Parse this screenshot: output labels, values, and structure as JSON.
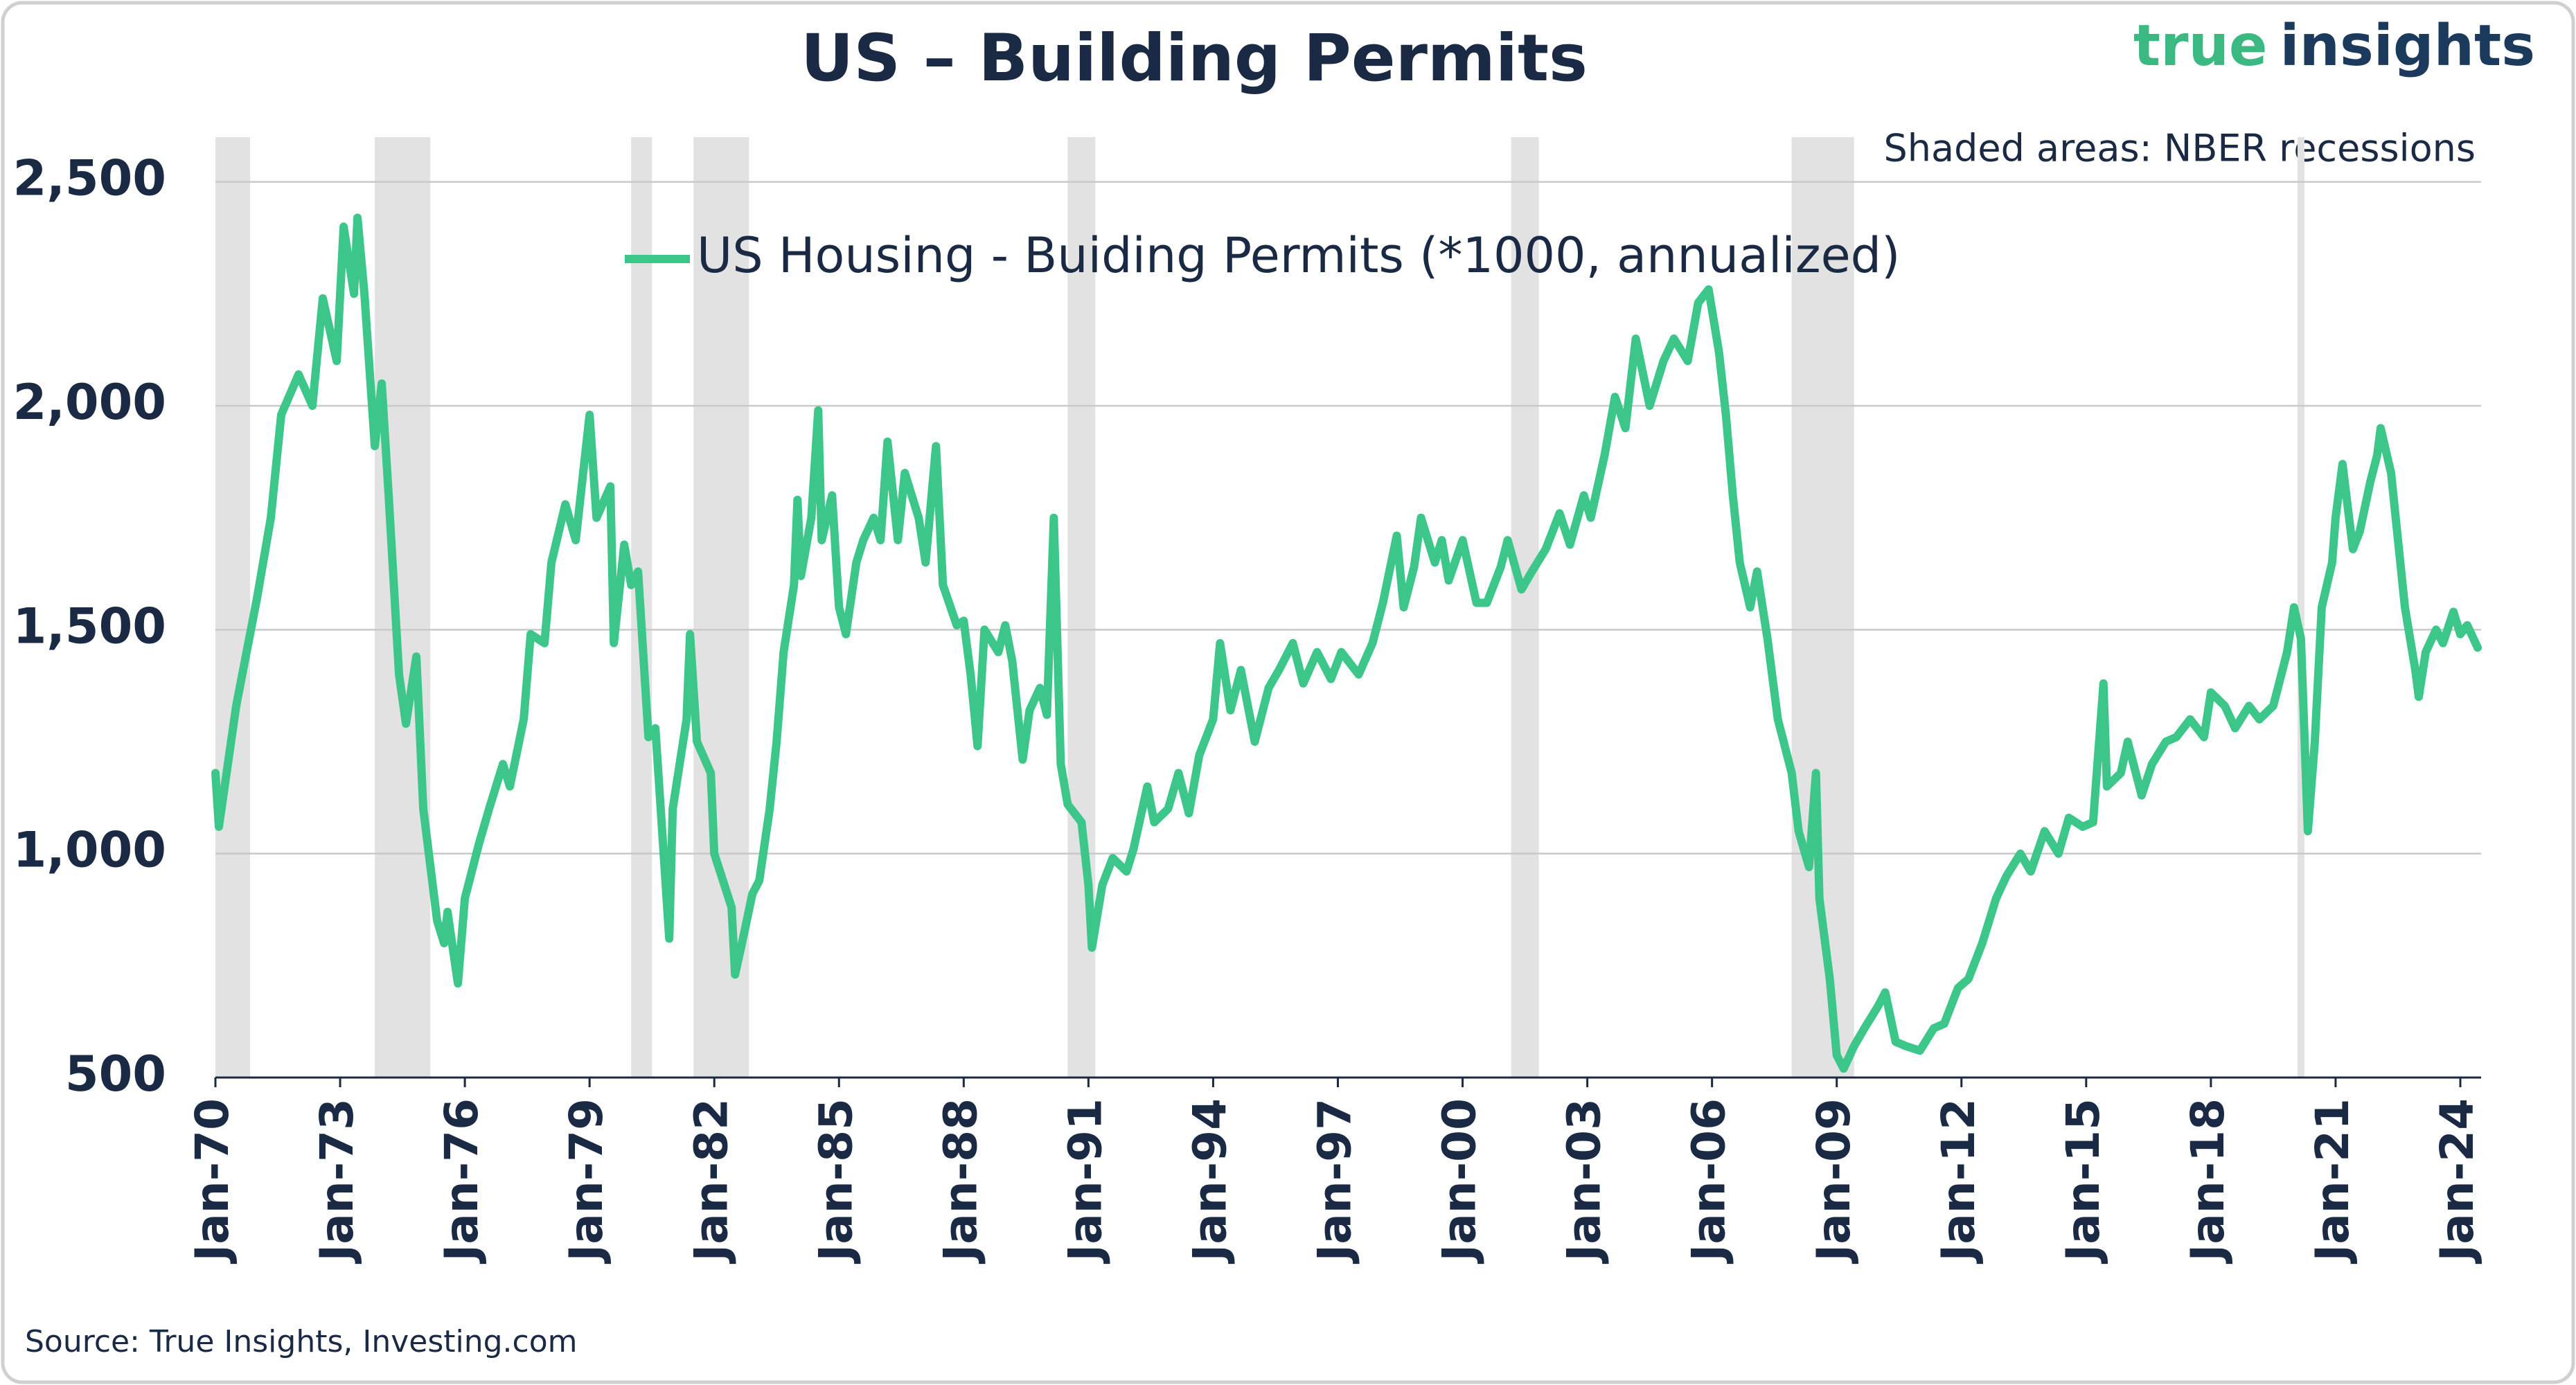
{
  "chart_data": {
    "type": "line",
    "title": "US – Building Permits",
    "brand_true": "true",
    "brand_insights": "insights",
    "note": "Shaded areas: NBER recessions",
    "source": "Source: True Insights, Investing.com",
    "xlim": [
      "1970-01",
      "2024-07"
    ],
    "ylim": [
      500,
      2600
    ],
    "yticks": [
      500,
      {
        "value": 1000,
        "label": "1,000"
      },
      {
        "value": 1500,
        "label": "1,500"
      },
      {
        "value": 2000,
        "label": "2,000"
      },
      {
        "value": 2500,
        "label": "2,500"
      }
    ],
    "xticks": [
      {
        "value": "1970-01",
        "label": "Jan-70"
      },
      {
        "value": "1973-01",
        "label": "Jan-73"
      },
      {
        "value": "1976-01",
        "label": "Jan-76"
      },
      {
        "value": "1979-01",
        "label": "Jan-79"
      },
      {
        "value": "1982-01",
        "label": "Jan-82"
      },
      {
        "value": "1985-01",
        "label": "Jan-85"
      },
      {
        "value": "1988-01",
        "label": "Jan-88"
      },
      {
        "value": "1991-01",
        "label": "Jan-91"
      },
      {
        "value": "1994-01",
        "label": "Jan-94"
      },
      {
        "value": "1997-01",
        "label": "Jan-97"
      },
      {
        "value": "2000-01",
        "label": "Jan-00"
      },
      {
        "value": "2003-01",
        "label": "Jan-03"
      },
      {
        "value": "2006-01",
        "label": "Jan-06"
      },
      {
        "value": "2009-01",
        "label": "Jan-09"
      },
      {
        "value": "2012-01",
        "label": "Jan-12"
      },
      {
        "value": "2015-01",
        "label": "Jan-15"
      },
      {
        "value": "2018-01",
        "label": "Jan-18"
      },
      {
        "value": "2021-01",
        "label": "Jan-21"
      },
      {
        "value": "2024-01",
        "label": "Jan-24"
      }
    ],
    "grid": true,
    "legend": "top",
    "recession_color": "#e2e2e2",
    "recessions": [
      [
        "1970-01",
        "1970-11"
      ],
      [
        "1973-11",
        "1975-03"
      ],
      [
        "1980-01",
        "1980-07"
      ],
      [
        "1981-07",
        "1982-11"
      ],
      [
        "1990-07",
        "1991-03"
      ],
      [
        "2001-03",
        "2001-11"
      ],
      [
        "2007-12",
        "2009-06"
      ],
      [
        "2020-02",
        "2020-04"
      ]
    ],
    "x": [
      "1970-01",
      "1970-02",
      "1970-07",
      "1971-01",
      "1971-05",
      "1971-08",
      "1972-01",
      "1972-05",
      "1972-08",
      "1972-12",
      "1973-02",
      "1973-05",
      "1973-06",
      "1973-08",
      "1973-11",
      "1974-01",
      "1974-03",
      "1974-06",
      "1974-08",
      "1974-11",
      "1975-01",
      "1975-05",
      "1975-07",
      "1975-08",
      "1975-11",
      "1976-01",
      "1976-05",
      "1976-08",
      "1976-12",
      "1977-02",
      "1977-06",
      "1977-08",
      "1977-12",
      "1978-02",
      "1978-06",
      "1978-09",
      "1979-01",
      "1979-03",
      "1979-07",
      "1979-08",
      "1979-11",
      "1980-01",
      "1980-03",
      "1980-06",
      "1980-08",
      "1980-12",
      "1981-01",
      "1981-05",
      "1981-06",
      "1981-08",
      "1981-12",
      "1982-01",
      "1982-06",
      "1982-07",
      "1982-09",
      "1982-12",
      "1983-02",
      "1983-05",
      "1983-07",
      "1983-09",
      "1983-12",
      "1984-01",
      "1984-02",
      "1984-05",
      "1984-07",
      "1984-08",
      "1984-11",
      "1985-01",
      "1985-03",
      "1985-06",
      "1985-08",
      "1985-11",
      "1986-01",
      "1986-03",
      "1986-06",
      "1986-08",
      "1986-12",
      "1987-02",
      "1987-05",
      "1987-07",
      "1987-11",
      "1988-01",
      "1988-03",
      "1988-05",
      "1988-07",
      "1988-11",
      "1989-01",
      "1989-03",
      "1989-06",
      "1989-08",
      "1989-11",
      "1990-01",
      "1990-03",
      "1990-05",
      "1990-07",
      "1990-11",
      "1991-01",
      "1991-02",
      "1991-05",
      "1991-08",
      "1991-12",
      "1992-02",
      "1992-06",
      "1992-08",
      "1992-12",
      "1993-03",
      "1993-06",
      "1993-09",
      "1994-01",
      "1994-03",
      "1994-06",
      "1994-09",
      "1995-01",
      "1995-05",
      "1995-08",
      "1995-12",
      "1996-03",
      "1996-07",
      "1996-11",
      "1997-02",
      "1997-07",
      "1997-11",
      "1998-02",
      "1998-06",
      "1998-08",
      "1998-11",
      "1999-01",
      "1999-05",
      "1999-07",
      "1999-09",
      "2000-01",
      "2000-05",
      "2000-08",
      "2000-12",
      "2001-02",
      "2001-06",
      "2001-09",
      "2002-01",
      "2002-05",
      "2002-08",
      "2002-12",
      "2003-02",
      "2003-06",
      "2003-09",
      "2003-12",
      "2004-03",
      "2004-07",
      "2004-11",
      "2005-02",
      "2005-06",
      "2005-09",
      "2005-12",
      "2006-03",
      "2006-05",
      "2006-07",
      "2006-09",
      "2006-12",
      "2007-02",
      "2007-05",
      "2007-08",
      "2007-12",
      "2008-02",
      "2008-05",
      "2008-07",
      "2008-08",
      "2008-11",
      "2009-01",
      "2009-03",
      "2009-06",
      "2009-09",
      "2010-01",
      "2010-03",
      "2010-06",
      "2010-09",
      "2011-01",
      "2011-05",
      "2011-08",
      "2011-12",
      "2012-03",
      "2012-07",
      "2012-11",
      "2013-02",
      "2013-06",
      "2013-09",
      "2014-01",
      "2014-05",
      "2014-08",
      "2014-12",
      "2015-03",
      "2015-06",
      "2015-07",
      "2015-11",
      "2016-01",
      "2016-05",
      "2016-08",
      "2016-12",
      "2017-03",
      "2017-07",
      "2017-11",
      "2018-01",
      "2018-05",
      "2018-08",
      "2018-12",
      "2019-03",
      "2019-07",
      "2019-11",
      "2020-01",
      "2020-03",
      "2020-05",
      "2020-07",
      "2020-09",
      "2020-12",
      "2021-01",
      "2021-03",
      "2021-06",
      "2021-08",
      "2021-11",
      "2022-01",
      "2022-02",
      "2022-05",
      "2022-07",
      "2022-09",
      "2022-12",
      "2023-01",
      "2023-03",
      "2023-06",
      "2023-08",
      "2023-11",
      "2024-01",
      "2024-03",
      "2024-06"
    ],
    "series": [
      {
        "name": "US Housing - Buiding Permits (*1000, annualized)",
        "color": "#3cc68a",
        "values": [
          1180,
          1060,
          1330,
          1570,
          1750,
          1980,
          2070,
          2000,
          2240,
          2100,
          2400,
          2250,
          2420,
          2250,
          1910,
          2050,
          1800,
          1400,
          1290,
          1440,
          1100,
          850,
          800,
          870,
          710,
          900,
          1020,
          1100,
          1200,
          1150,
          1300,
          1490,
          1470,
          1650,
          1780,
          1700,
          1980,
          1750,
          1820,
          1470,
          1690,
          1600,
          1630,
          1260,
          1280,
          810,
          1100,
          1300,
          1490,
          1250,
          1180,
          1000,
          880,
          730,
          800,
          910,
          940,
          1100,
          1250,
          1450,
          1600,
          1790,
          1620,
          1750,
          1990,
          1700,
          1800,
          1550,
          1490,
          1650,
          1700,
          1750,
          1700,
          1920,
          1700,
          1850,
          1750,
          1650,
          1910,
          1600,
          1510,
          1520,
          1400,
          1240,
          1500,
          1450,
          1510,
          1430,
          1210,
          1320,
          1370,
          1310,
          1750,
          1200,
          1110,
          1070,
          930,
          790,
          930,
          990,
          960,
          1010,
          1150,
          1070,
          1100,
          1180,
          1090,
          1220,
          1300,
          1470,
          1320,
          1410,
          1250,
          1370,
          1410,
          1470,
          1380,
          1450,
          1390,
          1450,
          1400,
          1470,
          1560,
          1710,
          1550,
          1640,
          1750,
          1650,
          1700,
          1610,
          1700,
          1560,
          1560,
          1640,
          1700,
          1590,
          1630,
          1680,
          1760,
          1690,
          1800,
          1750,
          1890,
          2020,
          1950,
          2150,
          2000,
          2100,
          2150,
          2100,
          2230,
          2260,
          2120,
          1980,
          1800,
          1650,
          1550,
          1630,
          1480,
          1300,
          1180,
          1050,
          970,
          1180,
          900,
          720,
          550,
          520,
          570,
          610,
          660,
          690,
          580,
          570,
          560,
          610,
          620,
          700,
          720,
          800,
          900,
          950,
          1000,
          960,
          1050,
          1000,
          1080,
          1060,
          1070,
          1380,
          1150,
          1180,
          1250,
          1130,
          1200,
          1250,
          1260,
          1300,
          1260,
          1360,
          1330,
          1280,
          1330,
          1300,
          1330,
          1450,
          1550,
          1480,
          1050,
          1250,
          1550,
          1650,
          1750,
          1870,
          1680,
          1720,
          1830,
          1890,
          1950,
          1850,
          1700,
          1550,
          1410,
          1350,
          1450,
          1500,
          1470,
          1540,
          1490,
          1510,
          1460
        ]
      }
    ]
  }
}
